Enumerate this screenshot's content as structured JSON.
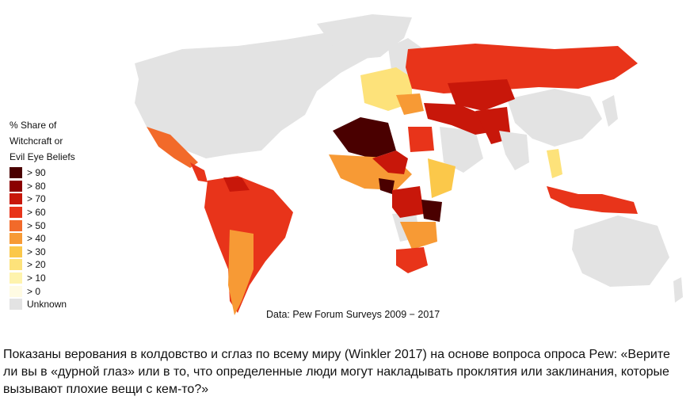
{
  "figure": {
    "legend_title_lines": [
      "% Share of",
      "Witchcraft or",
      "Evil Eye Beliefs"
    ],
    "legend": [
      {
        "label": "> 90",
        "color": "#4a0000"
      },
      {
        "label": "> 80",
        "color": "#8b0000"
      },
      {
        "label": "> 70",
        "color": "#c8170a"
      },
      {
        "label": "> 60",
        "color": "#e8341a"
      },
      {
        "label": "> 50",
        "color": "#f26a2a"
      },
      {
        "label": "> 40",
        "color": "#f79a35"
      },
      {
        "label": "> 30",
        "color": "#fbc84a"
      },
      {
        "label": "> 20",
        "color": "#fde27a"
      },
      {
        "label": "> 10",
        "color": "#fef3ad"
      },
      {
        "label": ">  0",
        "color": "#fffbe3"
      },
      {
        "label": "Unknown",
        "color": "#e3e3e3"
      }
    ],
    "source": "Data: Pew Forum Surveys 2009 − 2017"
  },
  "caption": "Показаны верования в колдовство и сглаз по всему миру (Winkler 2017) на основе вопроса опроса Pew: «Верите ли вы в «дурной глаз» или в то, что определенные люди могут накладывать проклятия или заклинания, которые вызывают плохие вещи с кем-то?»"
}
